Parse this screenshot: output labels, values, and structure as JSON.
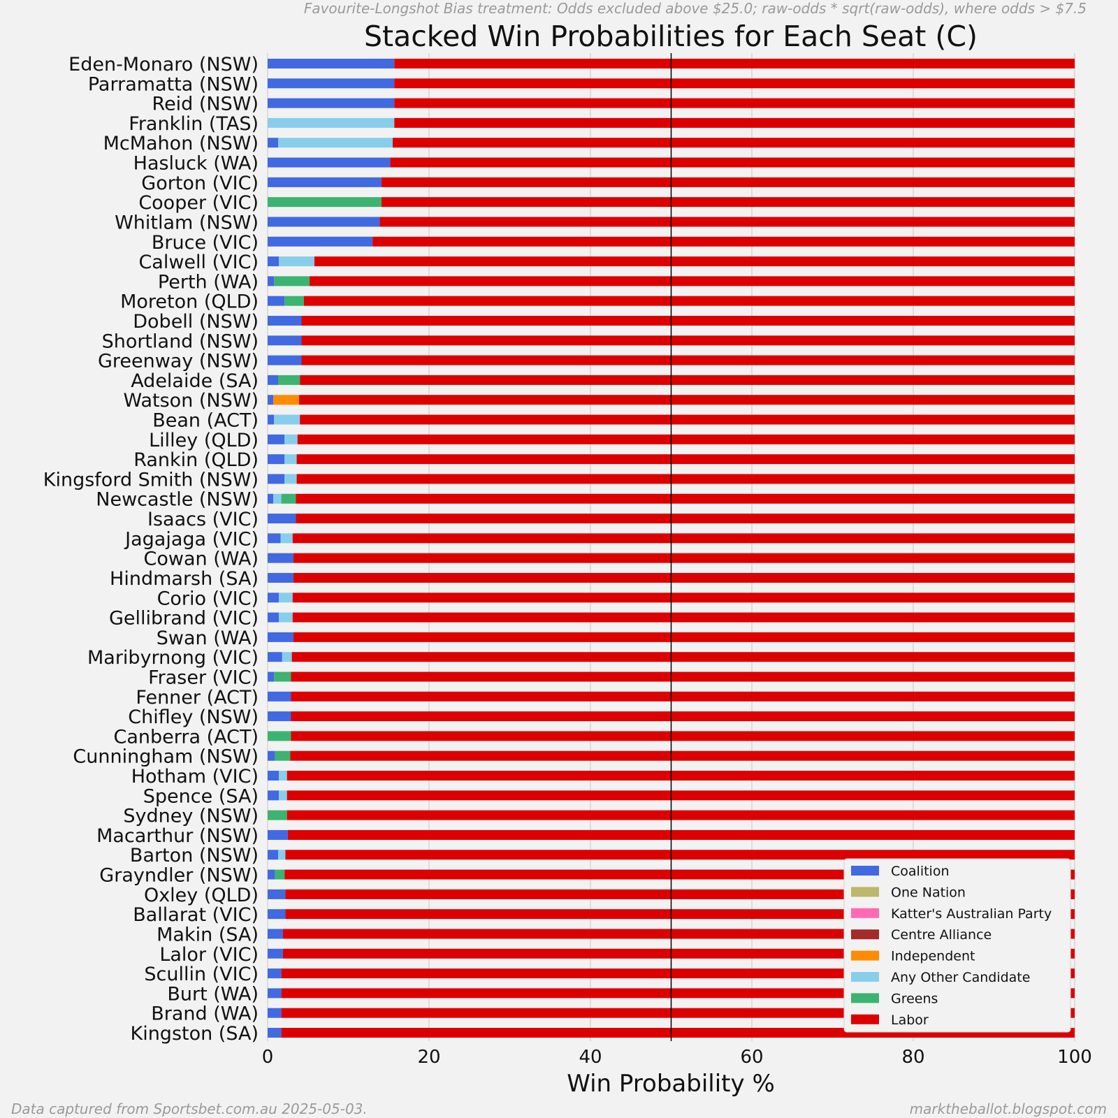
{
  "header": {
    "treatment_note": "Favourite-Longshot Bias treatment: Odds excluded above $25.0; raw-odds * sqrt(raw-odds), where odds > $7.5"
  },
  "footer": {
    "source_note": "Data captured from Sportsbet.com.au 2025-05-03.",
    "site_note": "marktheballot.blogspot.com"
  },
  "colors": {
    "Coalition": "#4169e1",
    "One Nation": "#bdb76b",
    "Katter's Australian Party": "#ff69b4",
    "Centre Alliance": "#a52a2a",
    "Independent": "#ff8c00",
    "Any Other Candidate": "#87ceeb",
    "Greens": "#3cb371",
    "Labor": "#dd0000"
  },
  "chart_data": {
    "type": "bar",
    "orientation": "horizontal",
    "stacked": true,
    "title": "Stacked Win Probabilities for Each Seat (C)",
    "xlabel": "Win Probability %",
    "ylabel": "",
    "xlim": [
      0,
      100
    ],
    "xticks": [
      0,
      20,
      40,
      60,
      80,
      100
    ],
    "reference_line_x": 50,
    "grid": "vertical",
    "legend_position": "lower-right",
    "legend": [
      "Coalition",
      "One Nation",
      "Katter's Australian Party",
      "Centre Alliance",
      "Independent",
      "Any Other Candidate",
      "Greens",
      "Labor"
    ],
    "categories": [
      "Eden-Monaro (NSW)",
      "Parramatta (NSW)",
      "Reid (NSW)",
      "Franklin (TAS)",
      "McMahon (NSW)",
      "Hasluck (WA)",
      "Gorton (VIC)",
      "Cooper (VIC)",
      "Whitlam (NSW)",
      "Bruce (VIC)",
      "Calwell (VIC)",
      "Perth (WA)",
      "Moreton (QLD)",
      "Dobell (NSW)",
      "Shortland (NSW)",
      "Greenway (NSW)",
      "Adelaide (SA)",
      "Watson (NSW)",
      "Bean (ACT)",
      "Lilley (QLD)",
      "Rankin (QLD)",
      "Kingsford Smith (NSW)",
      "Newcastle (NSW)",
      "Isaacs (VIC)",
      "Jagajaga (VIC)",
      "Cowan (WA)",
      "Hindmarsh (SA)",
      "Corio (VIC)",
      "Gellibrand (VIC)",
      "Swan (WA)",
      "Maribyrnong (VIC)",
      "Fraser (VIC)",
      "Fenner (ACT)",
      "Chifley (NSW)",
      "Canberra (ACT)",
      "Cunningham (NSW)",
      "Hotham (VIC)",
      "Spence (SA)",
      "Sydney (NSW)",
      "Macarthur (NSW)",
      "Barton (NSW)",
      "Grayndler (NSW)",
      "Oxley (QLD)",
      "Ballarat (VIC)",
      "Makin (SA)",
      "Lalor (VIC)",
      "Scullin (VIC)",
      "Burt (WA)",
      "Brand (WA)",
      "Kingston (SA)"
    ],
    "series": [
      {
        "name": "Coalition",
        "values": [
          15.7,
          15.7,
          15.7,
          0,
          1.3,
          15.2,
          14.1,
          0,
          13.9,
          13.0,
          1.4,
          0.8,
          2.1,
          4.2,
          4.2,
          4.2,
          1.3,
          0.7,
          0.8,
          2.1,
          2.1,
          2.1,
          0.7,
          3.5,
          1.6,
          3.2,
          3.2,
          1.4,
          1.4,
          3.2,
          1.8,
          0.8,
          2.9,
          2.9,
          0,
          0.9,
          1.4,
          1.4,
          0,
          2.5,
          1.3,
          0.9,
          2.2,
          2.2,
          1.9,
          1.9,
          1.7,
          1.7,
          1.7,
          1.7
        ]
      },
      {
        "name": "One Nation",
        "values": [
          0,
          0,
          0,
          0,
          0,
          0,
          0,
          0,
          0,
          0,
          0,
          0,
          0,
          0,
          0,
          0,
          0,
          0,
          0,
          0,
          0,
          0,
          0,
          0,
          0,
          0,
          0,
          0,
          0,
          0,
          0,
          0,
          0,
          0,
          0,
          0,
          0,
          0,
          0,
          0,
          0,
          0,
          0,
          0,
          0,
          0,
          0,
          0,
          0,
          0
        ]
      },
      {
        "name": "Katter's Australian Party",
        "values": [
          0,
          0,
          0,
          0,
          0,
          0,
          0,
          0,
          0,
          0,
          0,
          0,
          0,
          0,
          0,
          0,
          0,
          0,
          0,
          0,
          0,
          0,
          0,
          0,
          0,
          0,
          0,
          0,
          0,
          0,
          0,
          0,
          0,
          0,
          0,
          0,
          0,
          0,
          0,
          0,
          0,
          0,
          0,
          0,
          0,
          0,
          0,
          0,
          0,
          0
        ]
      },
      {
        "name": "Centre Alliance",
        "values": [
          0,
          0,
          0,
          0,
          0,
          0,
          0,
          0,
          0,
          0,
          0,
          0,
          0,
          0,
          0,
          0,
          0,
          0,
          0,
          0,
          0,
          0,
          0,
          0,
          0,
          0,
          0,
          0,
          0,
          0,
          0,
          0,
          0,
          0,
          0,
          0,
          0,
          0,
          0,
          0,
          0,
          0,
          0,
          0,
          0,
          0,
          0,
          0,
          0,
          0
        ]
      },
      {
        "name": "Independent",
        "values": [
          0,
          0,
          0,
          0,
          0,
          0,
          0,
          0,
          0,
          0,
          0,
          0,
          0,
          0,
          0,
          0,
          0,
          3.2,
          0,
          0,
          0,
          0,
          0,
          0,
          0,
          0,
          0,
          0,
          0,
          0,
          0,
          0,
          0,
          0,
          0,
          0,
          0,
          0,
          0,
          0,
          0,
          0,
          0,
          0,
          0,
          0,
          0,
          0,
          0,
          0
        ]
      },
      {
        "name": "Any Other Candidate",
        "values": [
          0,
          0,
          0,
          15.7,
          14.2,
          0,
          0,
          0,
          0,
          0,
          4.4,
          0,
          0,
          0,
          0,
          0,
          0,
          0,
          3.2,
          1.6,
          1.5,
          1.5,
          1.0,
          0,
          1.5,
          0,
          0,
          1.7,
          1.7,
          0,
          1.2,
          0,
          0,
          0,
          0,
          0,
          1.0,
          1.0,
          0,
          0,
          0.9,
          0,
          0,
          0,
          0,
          0,
          0,
          0,
          0,
          0
        ]
      },
      {
        "name": "Greens",
        "values": [
          0,
          0,
          0,
          0,
          0,
          0,
          0,
          14.1,
          0,
          0,
          0,
          4.4,
          2.4,
          0,
          0,
          0,
          2.7,
          0,
          0,
          0,
          0,
          0,
          1.8,
          0,
          0,
          0,
          0,
          0,
          0,
          0,
          0,
          2.1,
          0,
          0,
          2.9,
          1.9,
          0,
          0,
          2.4,
          0,
          0,
          1.2,
          0,
          0,
          0,
          0,
          0,
          0,
          0,
          0
        ]
      },
      {
        "name": "Labor",
        "values": [
          84.3,
          84.3,
          84.3,
          84.3,
          84.5,
          84.8,
          85.9,
          85.9,
          86.1,
          87.0,
          94.2,
          94.8,
          95.5,
          95.8,
          95.8,
          95.8,
          96.0,
          96.1,
          96.0,
          96.3,
          96.4,
          96.4,
          96.5,
          96.5,
          96.9,
          96.8,
          96.8,
          96.9,
          96.9,
          96.8,
          97.0,
          97.1,
          97.1,
          97.1,
          97.1,
          97.2,
          97.6,
          97.6,
          97.6,
          97.5,
          97.8,
          97.9,
          97.8,
          97.8,
          98.1,
          98.1,
          98.3,
          98.3,
          98.3,
          98.3
        ]
      }
    ]
  }
}
